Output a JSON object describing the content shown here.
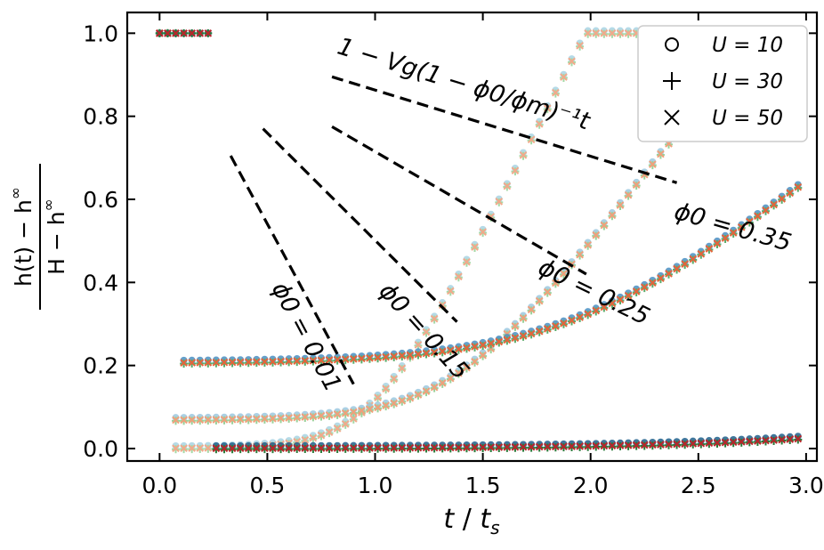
{
  "chart_data": {
    "type": "scatter",
    "xlabel": "t / t_s",
    "ylabel": "(h(t) − h^∞) / (H − h^∞)",
    "ylabel_numerator": "h(t) − h",
    "ylabel_denominator": "H − h",
    "ylabel_superscript": "∞",
    "xlim": [
      -0.15,
      3.05
    ],
    "ylim": [
      -0.03,
      1.05
    ],
    "xticks": [
      0.0,
      0.5,
      1.0,
      1.5,
      2.0,
      2.5,
      3.0
    ],
    "xtick_labels": [
      "0.0",
      "0.5",
      "1.0",
      "1.5",
      "2.0",
      "2.5",
      "3.0"
    ],
    "yticks": [
      0.0,
      0.2,
      0.4,
      0.6,
      0.8,
      1.0
    ],
    "ytick_labels": [
      "0.0",
      "0.2",
      "0.4",
      "0.6",
      "0.8",
      "1.0"
    ],
    "grid": false,
    "legend_position": "top-right",
    "legend": [
      {
        "marker": "circle",
        "label": "U = 10"
      },
      {
        "marker": "plus",
        "label": "U = 30"
      },
      {
        "marker": "x",
        "label": "U = 50"
      }
    ],
    "phi_series": [
      {
        "phi0": 0.01,
        "label": "ϕ0 = 0.01",
        "t_knee": 0.99,
        "h_plateau": 0.0,
        "start_t": 0.04,
        "colors": [
          "#a8d3e3",
          "#a6d8a6",
          "#f2a98a"
        ]
      },
      {
        "phi0": 0.15,
        "label": "ϕ0 = 0.15",
        "t_knee": 1.38,
        "h_plateau": 0.068,
        "start_t": 0.06,
        "colors": [
          "#9cc8df",
          "#9ad19a",
          "#f0a07a"
        ]
      },
      {
        "phi0": 0.25,
        "label": "ϕ0 = 0.25",
        "t_knee": 1.95,
        "h_plateau": 0.205,
        "start_t": 0.1,
        "colors": [
          "#4a8fc2",
          "#5aab6a",
          "#e5643a"
        ]
      },
      {
        "phi0": 0.35,
        "label": "ϕ0 = 0.35",
        "t_knee": 4.2,
        "h_plateau": 0.0,
        "start_t": 0.24,
        "colors": [
          "#1f5f8b",
          "#2a7a3a",
          "#b8262a"
        ]
      }
    ],
    "guide_lines": [
      {
        "for": "ϕ0 = 0.01",
        "x": [
          0.33,
          0.9
        ],
        "y": [
          0.705,
          0.155
        ]
      },
      {
        "for": "ϕ0 = 0.15",
        "x": [
          0.48,
          1.38
        ],
        "y": [
          0.77,
          0.305
        ]
      },
      {
        "for": "ϕ0 = 0.25",
        "x": [
          0.8,
          1.98
        ],
        "y": [
          0.775,
          0.42
        ]
      },
      {
        "for": "ϕ0 = 0.35",
        "x": [
          0.8,
          2.4
        ],
        "y": [
          0.895,
          0.64
        ]
      }
    ],
    "annotations": [
      {
        "text": "ϕ0 = 0.01",
        "pos": [
          0.65,
          0.26
        ],
        "angle": 62
      },
      {
        "text": "ϕ0 = 0.15",
        "pos": [
          1.2,
          0.27
        ],
        "angle": 48
      },
      {
        "text": "ϕ0 = 0.25",
        "pos": [
          2.0,
          0.36
        ],
        "angle": 26
      },
      {
        "text": "ϕ0 = 0.35",
        "pos": [
          2.65,
          0.515
        ],
        "angle": 16
      },
      {
        "text": "1 − Vg(1 − ϕ0/ϕm)⁻¹t",
        "pos": [
          1.4,
          0.86
        ],
        "angle": 17
      }
    ]
  }
}
